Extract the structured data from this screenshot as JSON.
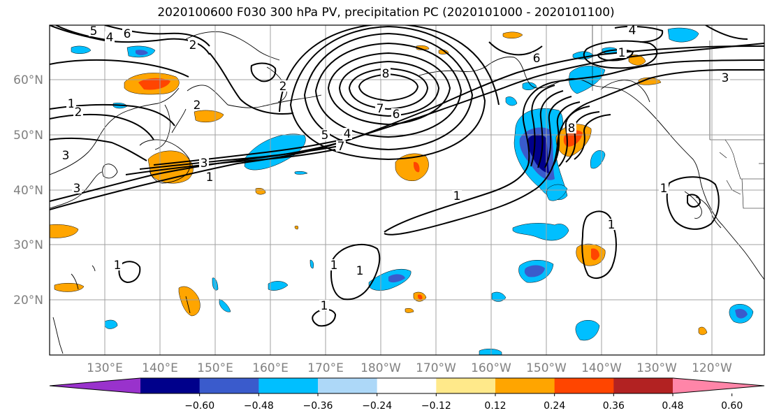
{
  "title": "2020100600 F030 300 hPa PV, precipitation PC (2020101000 - 2020101100)",
  "lat_labels": [
    "60°N",
    "50°N",
    "40°N",
    "30°N",
    "20°N"
  ],
  "lon_labels": [
    "130°E",
    "140°E",
    "150°E",
    "160°E",
    "170°E",
    "180°W",
    "170°W",
    "160°W",
    "150°W",
    "140°W",
    "130°W",
    "120°W"
  ],
  "colorbar": {
    "colors": [
      "#9932cc",
      "#00008b",
      "#3a5bcc",
      "#00bfff",
      "#add8f8",
      "#ffffff",
      "#ffe98a",
      "#ffa500",
      "#ff4500",
      "#b22222",
      "#ff85a8"
    ],
    "ticks": [
      "−0.60",
      "−0.48",
      "−0.36",
      "−0.24",
      "−0.12",
      "0.12",
      "0.24",
      "0.36",
      "0.48",
      "0.60"
    ]
  },
  "contour_labels": [
    {
      "text": "5"
    },
    {
      "text": "4"
    },
    {
      "text": "6"
    },
    {
      "text": "2"
    },
    {
      "text": "1"
    },
    {
      "text": "2"
    },
    {
      "text": "3"
    },
    {
      "text": "3"
    },
    {
      "text": "2"
    },
    {
      "text": "3"
    },
    {
      "text": "1"
    },
    {
      "text": "2"
    },
    {
      "text": "8"
    },
    {
      "text": "7"
    },
    {
      "text": "6"
    },
    {
      "text": "5"
    },
    {
      "text": "4"
    },
    {
      "text": "7"
    },
    {
      "text": "1"
    },
    {
      "text": "6"
    },
    {
      "text": "8"
    },
    {
      "text": "4"
    },
    {
      "text": "1"
    },
    {
      "text": "3"
    },
    {
      "text": "1"
    },
    {
      "text": "1"
    },
    {
      "text": "1"
    },
    {
      "text": "1"
    },
    {
      "text": "1"
    },
    {
      "text": "1"
    }
  ]
}
